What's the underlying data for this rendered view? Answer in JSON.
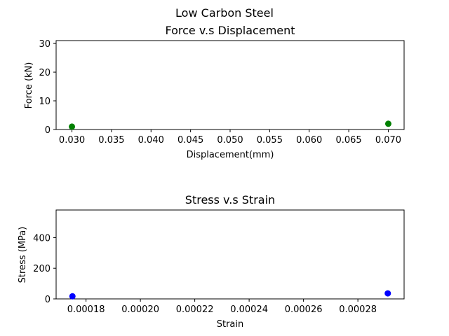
{
  "suptitle": "Low Carbon Steel",
  "chart_data": [
    {
      "type": "scatter",
      "title": "Force v.s Displacement",
      "xlabel": "Displacement(mm)",
      "ylabel": "Force (kN)",
      "xlim": [
        0.028,
        0.072
      ],
      "ylim": [
        0,
        31
      ],
      "xticks": [
        0.03,
        0.035,
        0.04,
        0.045,
        0.05,
        0.055,
        0.06,
        0.065,
        0.07
      ],
      "xtick_labels": [
        "0.030",
        "0.035",
        "0.040",
        "0.045",
        "0.050",
        "0.055",
        "0.060",
        "0.065",
        "0.070"
      ],
      "yticks": [
        0,
        10,
        20,
        30
      ],
      "ytick_labels": [
        "0",
        "10",
        "20",
        "30"
      ],
      "grid": false,
      "color": "#008000",
      "points": [
        {
          "x": 0.03,
          "y": 1.0
        },
        {
          "x": 0.07,
          "y": 2.0
        }
      ]
    },
    {
      "type": "scatter",
      "title": "Stress v.s Strain",
      "xlabel": "Strain",
      "ylabel": "Stress (MPa)",
      "xlim": [
        0.000169,
        0.000297
      ],
      "ylim": [
        0,
        580
      ],
      "xticks": [
        0.00018,
        0.0002,
        0.00022,
        0.00024,
        0.00026,
        0.00028
      ],
      "xtick_labels": [
        "0.00018",
        "0.00020",
        "0.00022",
        "0.00024",
        "0.00026",
        "0.00028"
      ],
      "yticks": [
        0,
        200,
        400
      ],
      "ytick_labels": [
        "0",
        "200",
        "400"
      ],
      "grid": false,
      "color": "#0000ff",
      "points": [
        {
          "x": 0.000175,
          "y": 17
        },
        {
          "x": 0.000291,
          "y": 36
        }
      ]
    }
  ]
}
